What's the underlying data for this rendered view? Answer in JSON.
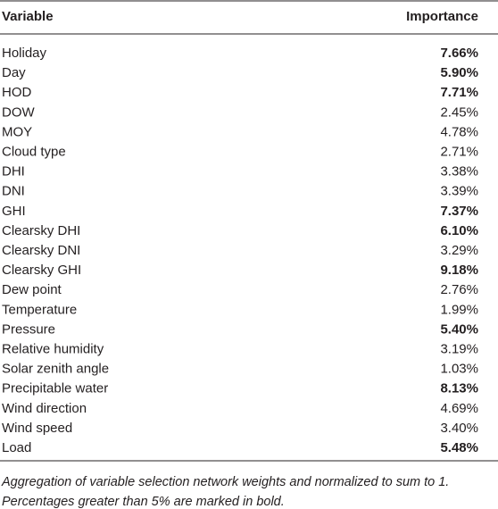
{
  "table": {
    "header": [
      "Variable",
      "Importance"
    ],
    "rows": [
      [
        "Holiday",
        "7.66%"
      ],
      [
        "Day",
        "5.90%"
      ],
      [
        "HOD",
        "7.71%"
      ],
      [
        "DOW",
        "2.45%"
      ],
      [
        "MOY",
        "4.78%"
      ],
      [
        "Cloud type",
        "2.71%"
      ],
      [
        "DHI",
        "3.38%"
      ],
      [
        "DNI",
        "3.39%"
      ],
      [
        "GHI",
        "7.37%"
      ],
      [
        "Clearsky DHI",
        "6.10%"
      ],
      [
        "Clearsky DNI",
        "3.29%"
      ],
      [
        "Clearsky GHI",
        "9.18%"
      ],
      [
        "Dew point",
        "2.76%"
      ],
      [
        "Temperature",
        "1.99%"
      ],
      [
        "Pressure",
        "5.40%"
      ],
      [
        "Relative humidity",
        "3.19%"
      ],
      [
        "Solar zenith angle",
        "1.03%"
      ],
      [
        "Precipitable water",
        "8.13%"
      ],
      [
        "Wind direction",
        "4.69%"
      ],
      [
        "Wind speed",
        "3.40%"
      ],
      [
        "Load",
        "5.48%"
      ]
    ],
    "bold": [
      true,
      true,
      true,
      false,
      false,
      false,
      false,
      false,
      true,
      true,
      false,
      true,
      false,
      false,
      true,
      false,
      false,
      true,
      false,
      false,
      true
    ],
    "caption": [
      "Aggregation of variable selection network weights and normalized to sum to 1.",
      "Percentages greater than 5% are marked in bold."
    ]
  }
}
